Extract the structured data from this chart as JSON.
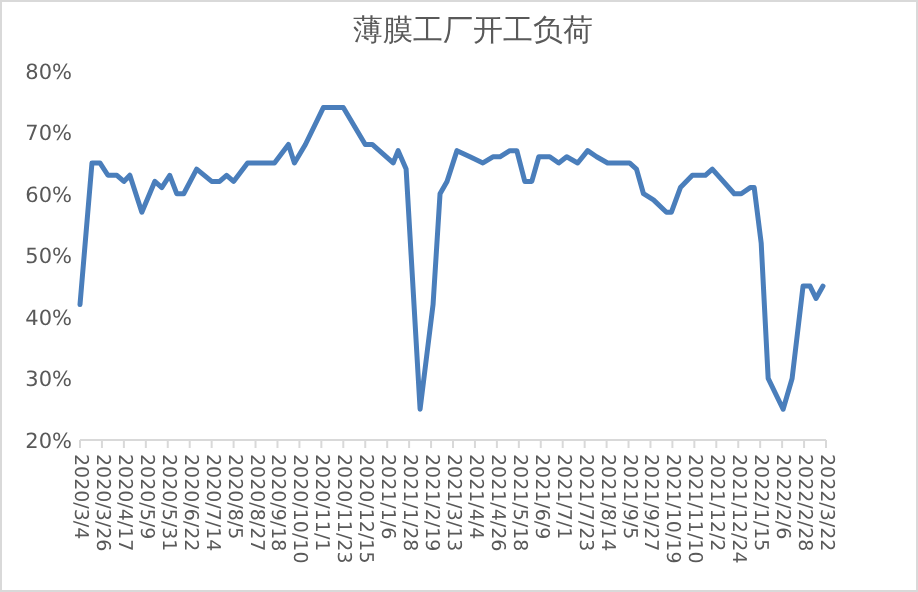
{
  "chart_data": {
    "type": "line",
    "title": "薄膜工厂开工负荷",
    "color": "#4a7ebb",
    "grid": false,
    "marker": "none",
    "line_style": "solid",
    "x": [
      "2020-03-04",
      "2020-03-16",
      "2020-03-24",
      "2020-04-01",
      "2020-04-10",
      "2020-04-17",
      "2020-04-23",
      "2020-05-05",
      "2020-05-18",
      "2020-05-25",
      "2020-06-02",
      "2020-06-09",
      "2020-06-16",
      "2020-06-29",
      "2020-07-14",
      "2020-07-22",
      "2020-07-29",
      "2020-08-05",
      "2020-08-19",
      "2020-09-15",
      "2020-09-29",
      "2020-10-05",
      "2020-10-16",
      "2020-11-03",
      "2020-11-23",
      "2020-12-15",
      "2020-12-22",
      "2021-01-12",
      "2021-01-17",
      "2021-01-25",
      "2021-02-08",
      "2021-02-21",
      "2021-02-28",
      "2021-03-07",
      "2021-03-17",
      "2021-03-30",
      "2021-04-12",
      "2021-04-22",
      "2021-04-29",
      "2021-05-09",
      "2021-05-16",
      "2021-05-24",
      "2021-05-31",
      "2021-06-07",
      "2021-06-18",
      "2021-06-27",
      "2021-07-05",
      "2021-07-16",
      "2021-07-26",
      "2021-08-04",
      "2021-08-15",
      "2021-09-06",
      "2021-09-13",
      "2021-09-20",
      "2021-09-30",
      "2021-10-13",
      "2021-10-18",
      "2021-10-27",
      "2021-11-08",
      "2021-11-21",
      "2021-11-28",
      "2021-12-09",
      "2021-12-20",
      "2021-12-27",
      "2022-01-05",
      "2022-01-09",
      "2022-01-16",
      "2022-01-23",
      "2022-02-07",
      "2022-02-16",
      "2022-02-27",
      "2022-03-06",
      "2022-03-12",
      "2022-03-19"
    ],
    "values": [
      42,
      65,
      65,
      63,
      63,
      62,
      63,
      57,
      62,
      61,
      63,
      60,
      60,
      64,
      62,
      62,
      63,
      62,
      65,
      65,
      68,
      65,
      68,
      74,
      74,
      68,
      68,
      65,
      67,
      64,
      25,
      42,
      60,
      62,
      67,
      66,
      65,
      66,
      66,
      67,
      67,
      62,
      62,
      66,
      66,
      65,
      66,
      65,
      67,
      66,
      65,
      65,
      64,
      60,
      59,
      57,
      57,
      61,
      63,
      63,
      64,
      62,
      60,
      60,
      61,
      61,
      52,
      30,
      25,
      30,
      45,
      45,
      43,
      45
    ],
    "xlim": [
      "2020-03-04",
      "2022-03-22"
    ],
    "xticks": [
      {
        "value": "2020-03-04",
        "label": "2020/3/4"
      },
      {
        "value": "2020-03-26",
        "label": "2020/3/26"
      },
      {
        "value": "2020-04-17",
        "label": "2020/4/17"
      },
      {
        "value": "2020-05-09",
        "label": "2020/5/9"
      },
      {
        "value": "2020-05-31",
        "label": "2020/5/31"
      },
      {
        "value": "2020-06-22",
        "label": "2020/6/22"
      },
      {
        "value": "2020-07-14",
        "label": "2020/7/14"
      },
      {
        "value": "2020-08-05",
        "label": "2020/8/5"
      },
      {
        "value": "2020-08-27",
        "label": "2020/8/27"
      },
      {
        "value": "2020-09-18",
        "label": "2020/9/18"
      },
      {
        "value": "2020-10-10",
        "label": "2020/10/10"
      },
      {
        "value": "2020-11-01",
        "label": "2020/11/1"
      },
      {
        "value": "2020-11-23",
        "label": "2020/11/23"
      },
      {
        "value": "2020-12-15",
        "label": "2020/12/15"
      },
      {
        "value": "2021-01-06",
        "label": "2021/1/6"
      },
      {
        "value": "2021-01-28",
        "label": "2021/1/28"
      },
      {
        "value": "2021-02-19",
        "label": "2021/2/19"
      },
      {
        "value": "2021-03-13",
        "label": "2021/3/13"
      },
      {
        "value": "2021-04-04",
        "label": "2021/4/4"
      },
      {
        "value": "2021-04-26",
        "label": "2021/4/26"
      },
      {
        "value": "2021-05-18",
        "label": "2021/5/18"
      },
      {
        "value": "2021-06-09",
        "label": "2021/6/9"
      },
      {
        "value": "2021-07-01",
        "label": "2021/7/1"
      },
      {
        "value": "2021-07-23",
        "label": "2021/7/23"
      },
      {
        "value": "2021-08-14",
        "label": "2021/8/14"
      },
      {
        "value": "2021-09-05",
        "label": "2021/9/5"
      },
      {
        "value": "2021-09-27",
        "label": "2021/9/27"
      },
      {
        "value": "2021-10-19",
        "label": "2021/10/19"
      },
      {
        "value": "2021-11-10",
        "label": "2021/11/10"
      },
      {
        "value": "2021-12-02",
        "label": "2021/12/2"
      },
      {
        "value": "2021-12-24",
        "label": "2021/12/24"
      },
      {
        "value": "2022-01-15",
        "label": "2022/1/15"
      },
      {
        "value": "2022-02-06",
        "label": "2022/2/6"
      },
      {
        "value": "2022-02-28",
        "label": "2022/2/28"
      },
      {
        "value": "2022-03-22",
        "label": "2022/3/22"
      }
    ],
    "ylim": [
      20,
      80
    ],
    "yticks": [
      {
        "value": 20,
        "label": "20%"
      },
      {
        "value": 30,
        "label": "30%"
      },
      {
        "value": 40,
        "label": "40%"
      },
      {
        "value": 50,
        "label": "50%"
      },
      {
        "value": 60,
        "label": "60%"
      },
      {
        "value": 70,
        "label": "70%"
      },
      {
        "value": 80,
        "label": "80%"
      }
    ]
  }
}
